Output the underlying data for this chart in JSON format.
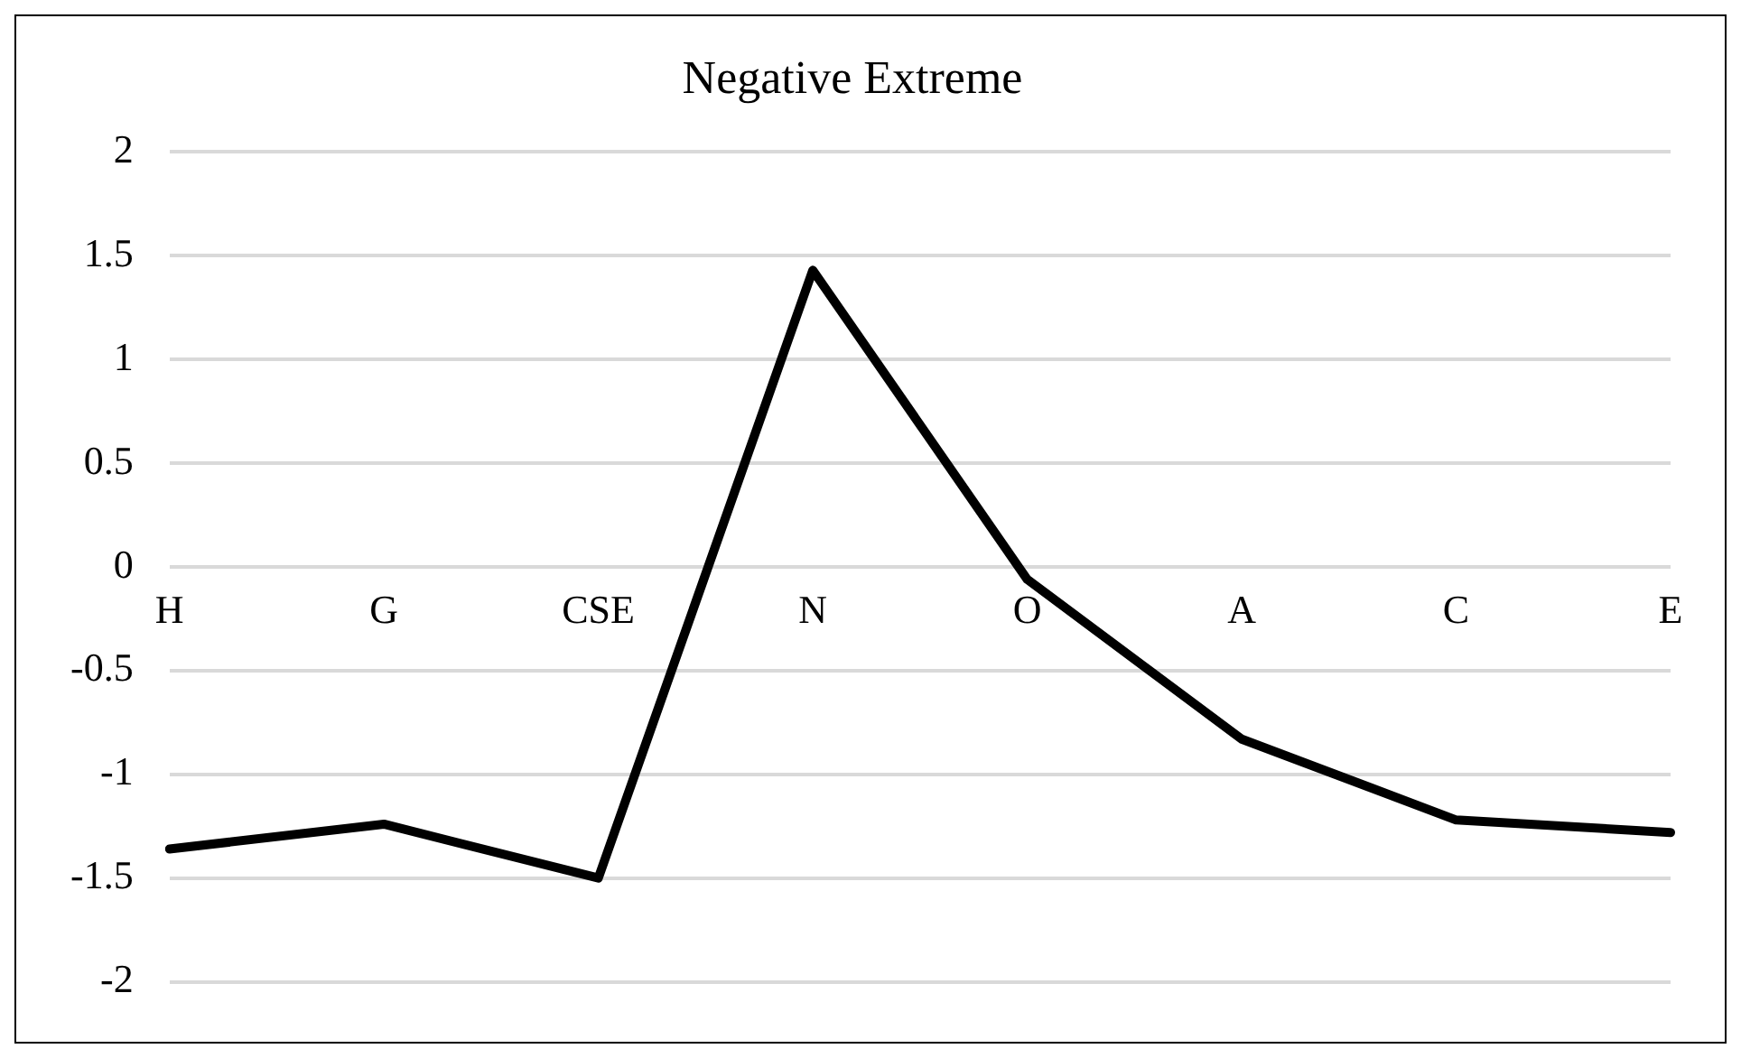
{
  "chart_data": {
    "type": "line",
    "title": "Negative Extreme",
    "categories": [
      "H",
      "G",
      "CSE",
      "N",
      "O",
      "A",
      "C",
      "E"
    ],
    "series": [
      {
        "color": "#000000",
        "values": [
          -1.36,
          -1.24,
          -1.5,
          1.43,
          -0.06,
          -0.83,
          -1.22,
          -1.28
        ]
      }
    ],
    "ylim": [
      -2,
      2
    ],
    "yticks": [
      -2,
      -1.5,
      -1,
      -0.5,
      0,
      0.5,
      1,
      1.5,
      2
    ],
    "grid": "y",
    "legend": false,
    "marker": "none"
  }
}
